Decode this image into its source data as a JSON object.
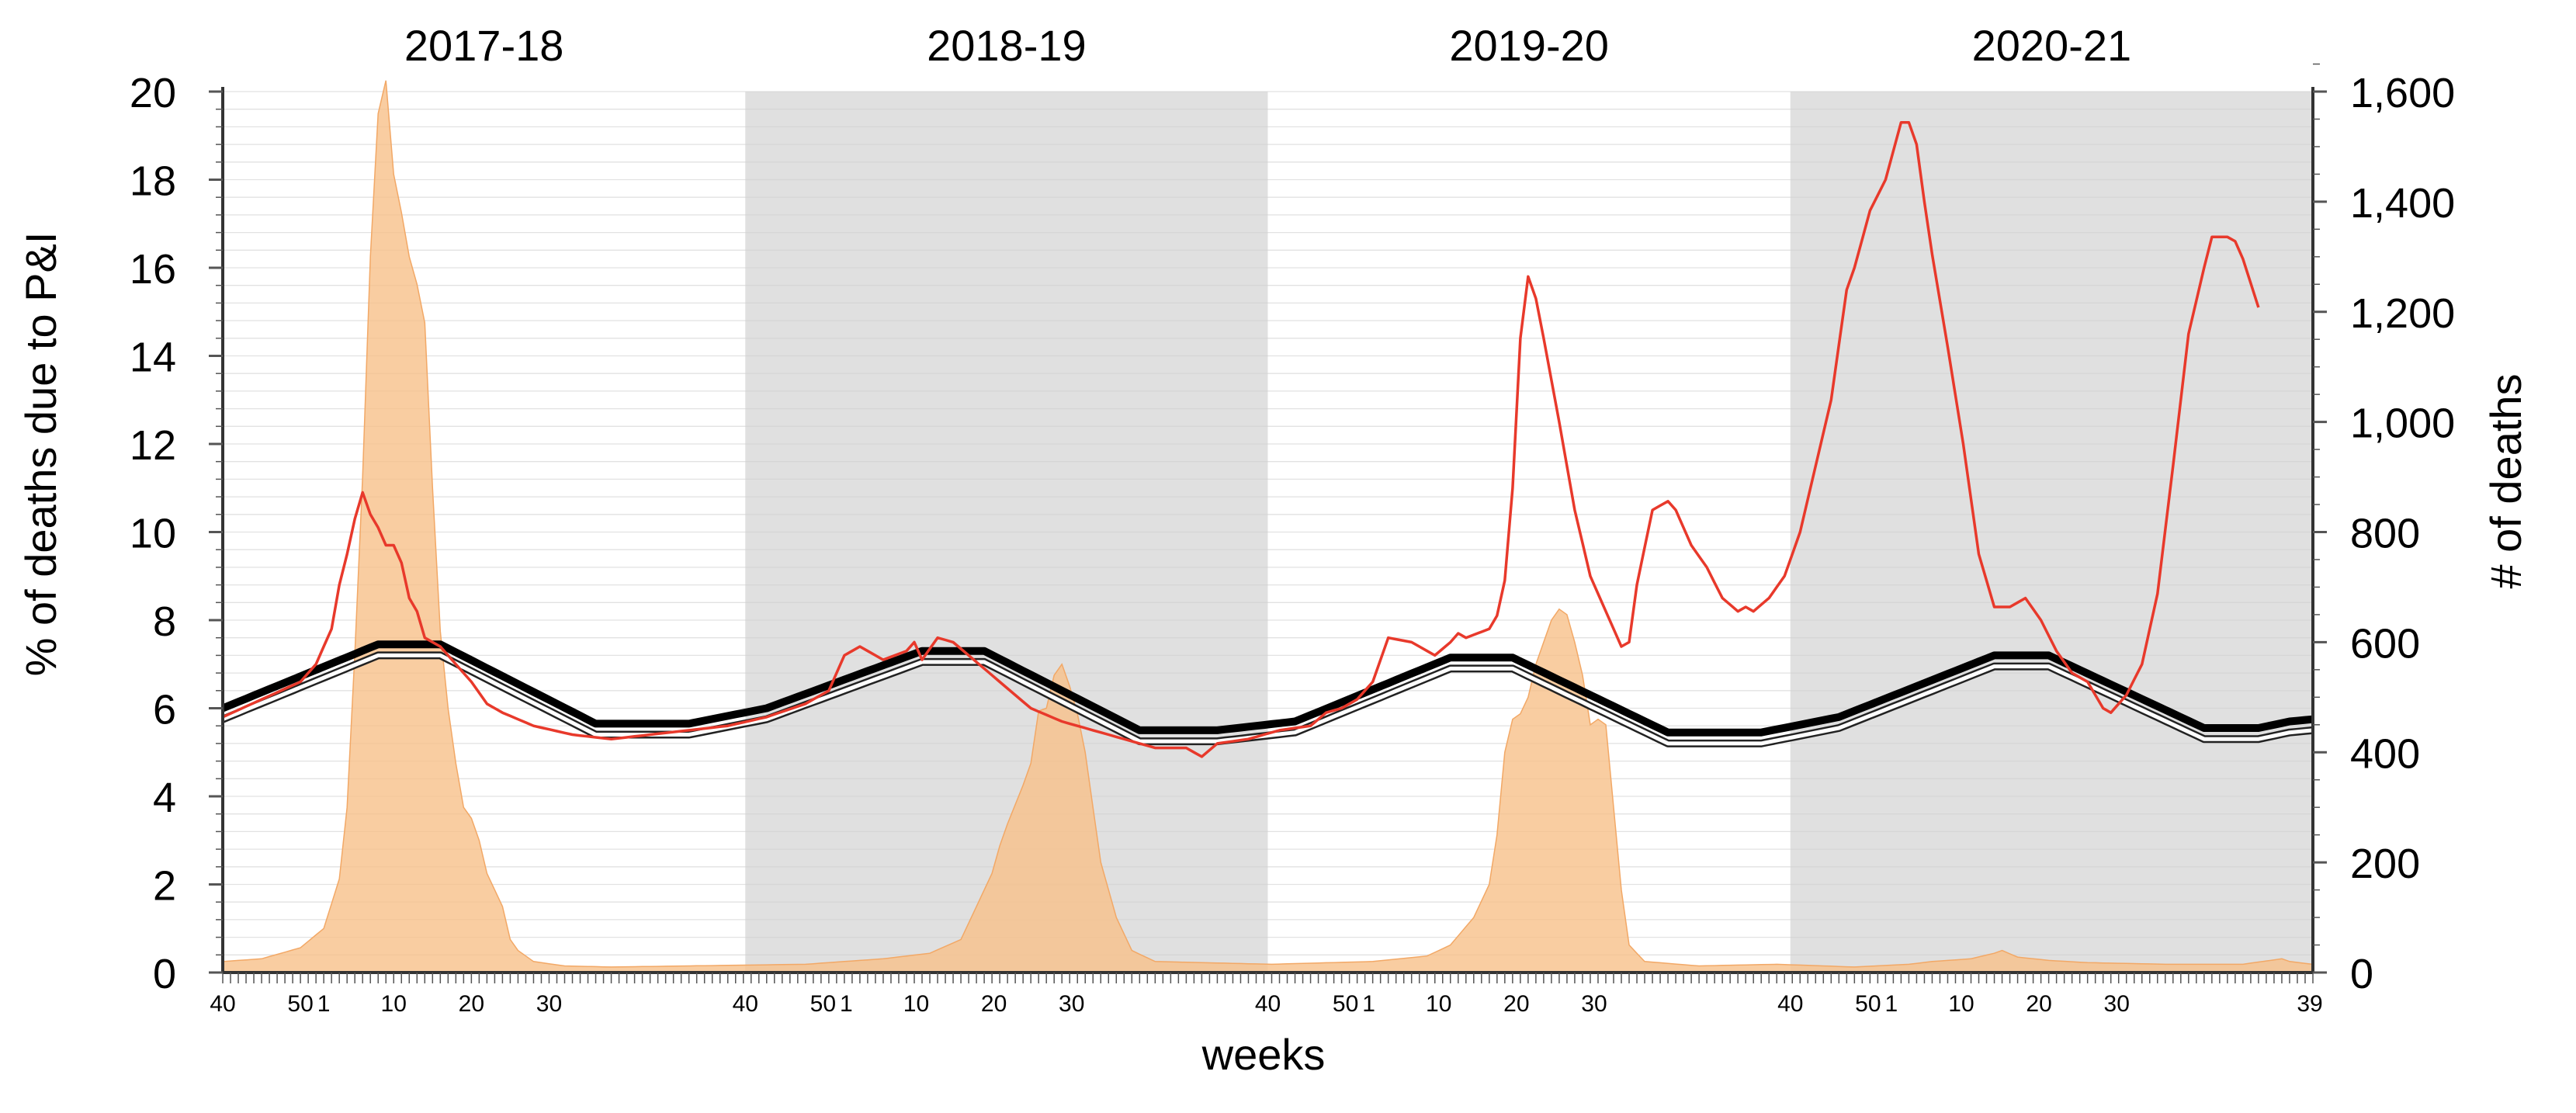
{
  "chart_data": {
    "type": "area",
    "xlabel": "weeks",
    "ylabel_left": "% of deaths due to P&I",
    "ylabel_right": "# of deaths",
    "y_left_range": [
      0,
      20
    ],
    "y_left_ticks": [
      "0",
      "2",
      "4",
      "6",
      "8",
      "10",
      "12",
      "14",
      "16",
      "18",
      "20"
    ],
    "y_right_range": [
      0,
      1600
    ],
    "y_right_ticks": [
      "0",
      "200",
      "400",
      "600",
      "800",
      "1,000",
      "1,200",
      "1,400",
      "1,600"
    ],
    "seasons": [
      {
        "label": "2017-18",
        "shaded": false
      },
      {
        "label": "2018-19",
        "shaded": true
      },
      {
        "label": "2019-20",
        "shaded": false
      },
      {
        "label": "2020-21",
        "shaded": true
      }
    ],
    "week_tick_labels": [
      "40",
      "50",
      "1",
      "10",
      "20",
      "30"
    ],
    "final_tick_label": "39",
    "grid": "horizontal-fine",
    "colors": {
      "pi_percent": "#e8392b",
      "epidemic_threshold": "#000000",
      "seasonal_baseline": "#444444",
      "influenza_deaths_fill": "#f7c08a",
      "season_shade": "#e0e0e0"
    },
    "series": [
      {
        "axis": "right",
        "style": "area",
        "knots": [
          [
            0,
            20
          ],
          [
            5,
            25
          ],
          [
            10,
            45
          ],
          [
            13,
            80
          ],
          [
            15,
            170
          ],
          [
            16,
            300
          ],
          [
            17,
            580
          ],
          [
            18,
            900
          ],
          [
            19,
            1300
          ],
          [
            20,
            1560
          ],
          [
            21,
            1620
          ],
          [
            22,
            1450
          ],
          [
            23,
            1380
          ],
          [
            24,
            1300
          ],
          [
            25,
            1250
          ],
          [
            26,
            1180
          ],
          [
            27,
            880
          ],
          [
            28,
            620
          ],
          [
            29,
            480
          ],
          [
            30,
            380
          ],
          [
            31,
            300
          ],
          [
            32,
            280
          ],
          [
            33,
            240
          ],
          [
            34,
            180
          ],
          [
            35,
            150
          ],
          [
            36,
            120
          ],
          [
            37,
            60
          ],
          [
            38,
            40
          ],
          [
            40,
            20
          ],
          [
            44,
            12
          ],
          [
            50,
            10
          ],
          [
            60,
            12
          ],
          [
            75,
            15
          ],
          [
            85,
            25
          ],
          [
            91,
            35
          ],
          [
            95,
            60
          ],
          [
            97,
            120
          ],
          [
            99,
            180
          ],
          [
            100,
            230
          ],
          [
            101,
            270
          ],
          [
            103,
            340
          ],
          [
            104,
            380
          ],
          [
            105,
            475
          ],
          [
            106,
            480
          ],
          [
            107,
            540
          ],
          [
            108,
            560
          ],
          [
            109,
            520
          ],
          [
            110,
            470
          ],
          [
            111,
            400
          ],
          [
            112,
            300
          ],
          [
            113,
            200
          ],
          [
            115,
            100
          ],
          [
            117,
            40
          ],
          [
            120,
            20
          ],
          [
            135,
            15
          ],
          [
            148,
            20
          ],
          [
            155,
            30
          ],
          [
            158,
            50
          ],
          [
            161,
            100
          ],
          [
            163,
            160
          ],
          [
            164,
            250
          ],
          [
            165,
            400
          ],
          [
            166,
            460
          ],
          [
            167,
            470
          ],
          [
            168,
            500
          ],
          [
            169,
            560
          ],
          [
            170,
            600
          ],
          [
            171,
            640
          ],
          [
            172,
            660
          ],
          [
            173,
            650
          ],
          [
            174,
            600
          ],
          [
            175,
            540
          ],
          [
            176,
            450
          ],
          [
            177,
            460
          ],
          [
            178,
            450
          ],
          [
            179,
            300
          ],
          [
            180,
            150
          ],
          [
            181,
            50
          ],
          [
            183,
            20
          ],
          [
            190,
            12
          ],
          [
            200,
            15
          ],
          [
            210,
            10
          ],
          [
            217,
            15
          ],
          [
            220,
            20
          ],
          [
            225,
            25
          ],
          [
            228,
            35
          ],
          [
            229,
            40
          ],
          [
            231,
            28
          ],
          [
            235,
            22
          ],
          [
            240,
            18
          ],
          [
            250,
            15
          ],
          [
            260,
            15
          ],
          [
            265,
            25
          ],
          [
            266,
            20
          ],
          [
            269,
            15
          ]
        ],
        "legend": ""
      },
      {
        "axis": "left",
        "style": "line",
        "knots": [
          [
            0,
            5.8
          ],
          [
            5,
            6.2
          ],
          [
            10,
            6.6
          ],
          [
            12,
            7.0
          ],
          [
            14,
            7.8
          ],
          [
            15,
            8.8
          ],
          [
            16,
            9.5
          ],
          [
            17,
            10.3
          ],
          [
            18,
            10.9
          ],
          [
            19,
            10.4
          ],
          [
            20,
            10.1
          ],
          [
            21,
            9.7
          ],
          [
            22,
            9.7
          ],
          [
            23,
            9.3
          ],
          [
            24,
            8.5
          ],
          [
            25,
            8.2
          ],
          [
            26,
            7.6
          ],
          [
            28,
            7.4
          ],
          [
            30,
            7.0
          ],
          [
            32,
            6.6
          ],
          [
            34,
            6.1
          ],
          [
            36,
            5.9
          ],
          [
            40,
            5.6
          ],
          [
            45,
            5.4
          ],
          [
            50,
            5.3
          ],
          [
            55,
            5.4
          ],
          [
            60,
            5.5
          ],
          [
            65,
            5.6
          ],
          [
            70,
            5.8
          ],
          [
            75,
            6.1
          ],
          [
            78,
            6.4
          ],
          [
            80,
            7.2
          ],
          [
            82,
            7.4
          ],
          [
            85,
            7.1
          ],
          [
            88,
            7.3
          ],
          [
            89,
            7.5
          ],
          [
            90,
            7.1
          ],
          [
            92,
            7.6
          ],
          [
            94,
            7.5
          ],
          [
            96,
            7.2
          ],
          [
            100,
            6.6
          ],
          [
            104,
            6.0
          ],
          [
            108,
            5.7
          ],
          [
            112,
            5.5
          ],
          [
            116,
            5.3
          ],
          [
            120,
            5.1
          ],
          [
            124,
            5.1
          ],
          [
            126,
            4.9
          ],
          [
            128,
            5.2
          ],
          [
            132,
            5.3
          ],
          [
            136,
            5.5
          ],
          [
            140,
            5.6
          ],
          [
            142,
            5.9
          ],
          [
            144,
            6.0
          ],
          [
            146,
            6.2
          ],
          [
            148,
            6.6
          ],
          [
            150,
            7.6
          ],
          [
            153,
            7.5
          ],
          [
            156,
            7.2
          ],
          [
            158,
            7.5
          ],
          [
            159,
            7.7
          ],
          [
            160,
            7.6
          ],
          [
            163,
            7.8
          ],
          [
            164,
            8.1
          ],
          [
            165,
            8.9
          ],
          [
            166,
            11.0
          ],
          [
            167,
            14.4
          ],
          [
            168,
            15.8
          ],
          [
            169,
            15.3
          ],
          [
            170,
            14.4
          ],
          [
            172,
            12.5
          ],
          [
            174,
            10.5
          ],
          [
            176,
            9.0
          ],
          [
            178,
            8.2
          ],
          [
            180,
            7.4
          ],
          [
            181,
            7.5
          ],
          [
            182,
            8.8
          ],
          [
            184,
            10.5
          ],
          [
            186,
            10.7
          ],
          [
            187,
            10.5
          ],
          [
            189,
            9.7
          ],
          [
            191,
            9.2
          ],
          [
            193,
            8.5
          ],
          [
            195,
            8.2
          ],
          [
            196,
            8.3
          ],
          [
            197,
            8.2
          ],
          [
            199,
            8.5
          ],
          [
            201,
            9.0
          ],
          [
            203,
            10.0
          ],
          [
            205,
            11.5
          ],
          [
            207,
            13.0
          ],
          [
            209,
            15.5
          ],
          [
            210,
            16.0
          ],
          [
            212,
            17.3
          ],
          [
            214,
            18.0
          ],
          [
            216,
            19.3
          ],
          [
            217,
            19.3
          ],
          [
            218,
            18.8
          ],
          [
            219,
            17.5
          ],
          [
            220,
            16.3
          ],
          [
            222,
            14.2
          ],
          [
            224,
            12.0
          ],
          [
            226,
            9.5
          ],
          [
            228,
            8.3
          ],
          [
            230,
            8.3
          ],
          [
            232,
            8.5
          ],
          [
            234,
            8.0
          ],
          [
            236,
            7.3
          ],
          [
            238,
            6.8
          ],
          [
            240,
            6.6
          ],
          [
            242,
            6.0
          ],
          [
            243,
            5.9
          ],
          [
            245,
            6.3
          ],
          [
            247,
            7.0
          ],
          [
            249,
            8.6
          ],
          [
            251,
            11.5
          ],
          [
            253,
            14.5
          ],
          [
            255,
            16.0
          ],
          [
            256,
            16.7
          ],
          [
            258,
            16.7
          ],
          [
            259,
            16.6
          ],
          [
            260,
            16.2
          ],
          [
            262,
            15.1
          ]
        ],
        "legend": ""
      },
      {
        "axis": "left",
        "style": "line-thick",
        "knots": [
          [
            0,
            6.0
          ],
          [
            20,
            7.45
          ],
          [
            28,
            7.45
          ],
          [
            48,
            5.65
          ],
          [
            60,
            5.65
          ],
          [
            70,
            6.0
          ],
          [
            90,
            7.3
          ],
          [
            98,
            7.3
          ],
          [
            118,
            5.5
          ],
          [
            128,
            5.5
          ],
          [
            138,
            5.7
          ],
          [
            158,
            7.15
          ],
          [
            166,
            7.15
          ],
          [
            186,
            5.45
          ],
          [
            198,
            5.45
          ],
          [
            208,
            5.8
          ],
          [
            228,
            7.2
          ],
          [
            235,
            7.2
          ],
          [
            255,
            5.55
          ],
          [
            262,
            5.55
          ],
          [
            266,
            5.7
          ],
          [
            269,
            5.75
          ]
        ],
        "legend": ""
      },
      {
        "axis": "left",
        "style": "line-outline",
        "knots": [
          [
            0,
            5.75
          ],
          [
            20,
            7.2
          ],
          [
            28,
            7.2
          ],
          [
            48,
            5.4
          ],
          [
            60,
            5.4
          ],
          [
            70,
            5.75
          ],
          [
            90,
            7.05
          ],
          [
            98,
            7.05
          ],
          [
            118,
            5.25
          ],
          [
            128,
            5.25
          ],
          [
            138,
            5.45
          ],
          [
            158,
            6.9
          ],
          [
            166,
            6.9
          ],
          [
            186,
            5.2
          ],
          [
            198,
            5.2
          ],
          [
            208,
            5.55
          ],
          [
            228,
            6.95
          ],
          [
            235,
            6.95
          ],
          [
            255,
            5.3
          ],
          [
            262,
            5.3
          ],
          [
            266,
            5.45
          ],
          [
            269,
            5.5
          ]
        ],
        "legend": ""
      }
    ]
  }
}
